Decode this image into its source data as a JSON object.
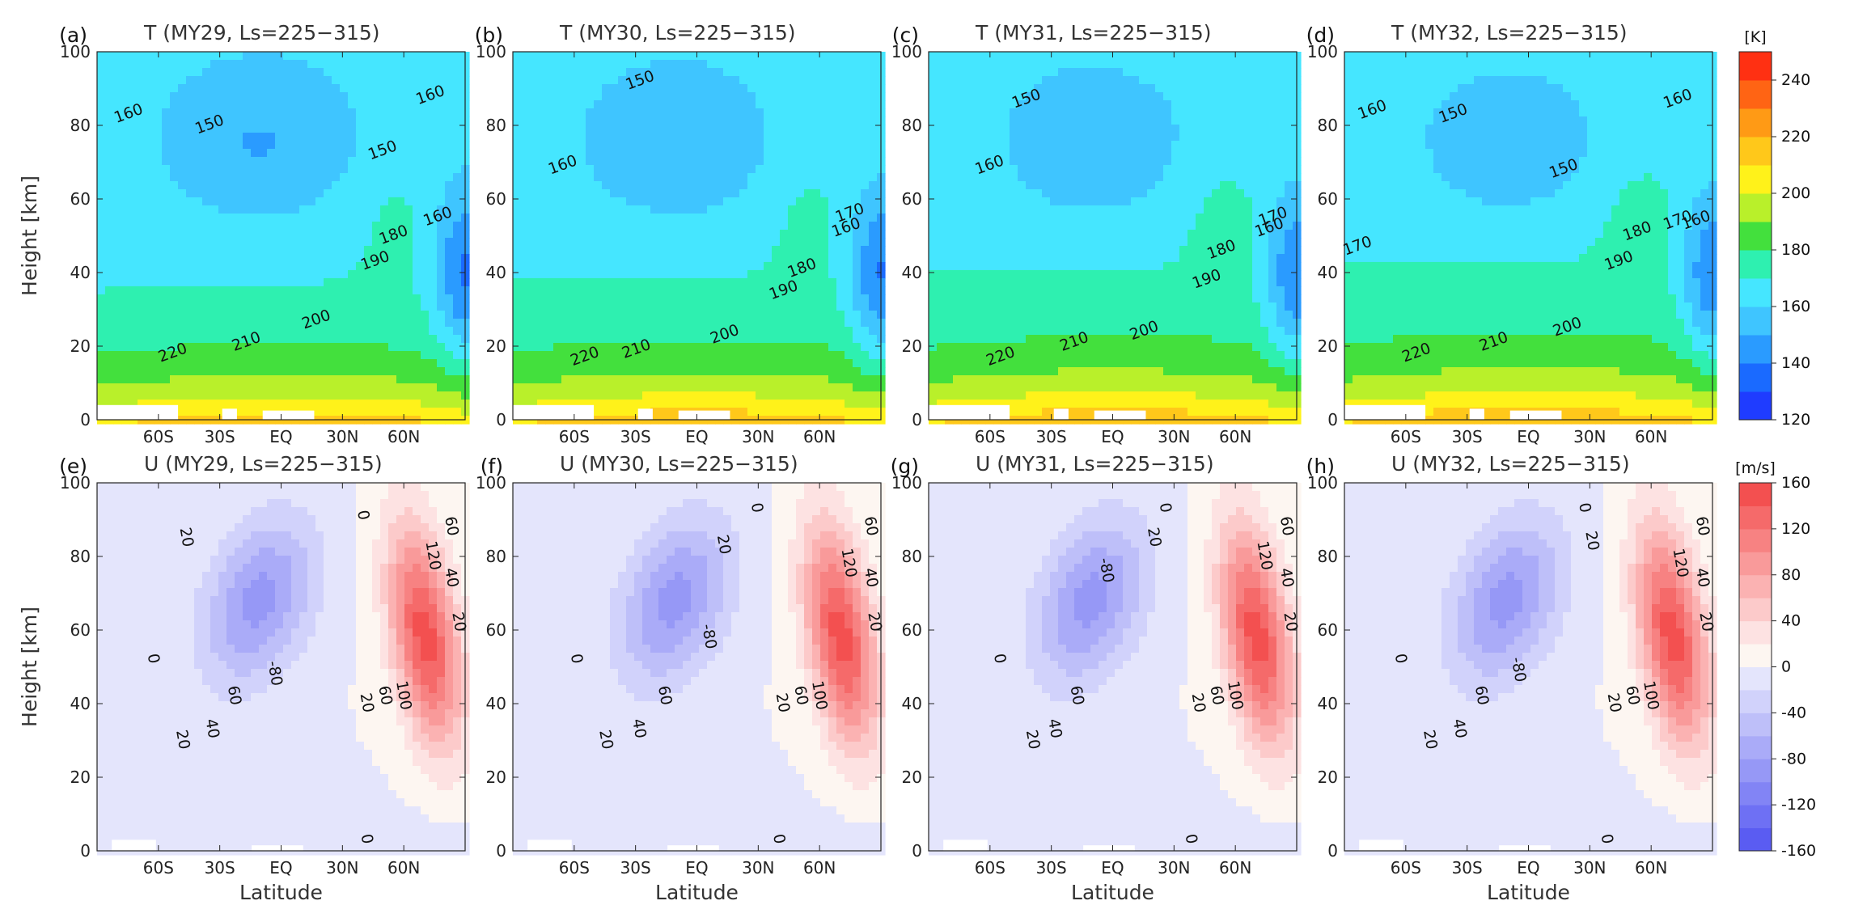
{
  "figure": {
    "t_units": "[K]",
    "u_units": "[m/s]",
    "x_axis_label": "Latitude",
    "y_axis_label": "Height [km]",
    "x_tick_labels": [
      "60S",
      "30S",
      "EQ",
      "30N",
      "60N"
    ],
    "y_tick_labels": [
      "0",
      "20",
      "40",
      "60",
      "80",
      "100"
    ],
    "t_colorbar_ticks": [
      "120",
      "140",
      "160",
      "180",
      "200",
      "220",
      "240"
    ],
    "u_colorbar_ticks": [
      "-160",
      "-120",
      "-80",
      "-40",
      "0",
      "40",
      "80",
      "120",
      "160"
    ],
    "t_colors": [
      "#1f3cff",
      "#1a6aff",
      "#2a9bff",
      "#3fc5ff",
      "#45e6ff",
      "#2ef0b0",
      "#43e03d",
      "#b9f02a",
      "#fff21a",
      "#ffc81a",
      "#ff9a15",
      "#ff6414",
      "#ff3012"
    ],
    "u_colors": [
      "#5a5cf2",
      "#6e70f4",
      "#8284f5",
      "#9698f6",
      "#aaabf8",
      "#bebff9",
      "#d1d2fb",
      "#e4e5fc",
      "#fdf6f1",
      "#fde2e2",
      "#fccaca",
      "#fbb2b2",
      "#f99a9a",
      "#f78282",
      "#f56a6a",
      "#f35050"
    ]
  },
  "chart_data": [
    {
      "panel": "(a)",
      "title": "T (MY29, Ls=225−315)",
      "type": "heatmap",
      "variable": "T",
      "xlim": [
        -90,
        90
      ],
      "ylim": [
        0,
        100
      ],
      "contour_labels": [
        "160",
        "150",
        "150",
        "160",
        "180",
        "190",
        "160",
        "200",
        "210",
        "220"
      ]
    },
    {
      "panel": "(b)",
      "title": "T (MY30, Ls=225−315)",
      "type": "heatmap",
      "variable": "T",
      "xlim": [
        -90,
        90
      ],
      "ylim": [
        0,
        100
      ],
      "contour_labels": [
        "150",
        "160",
        "180",
        "190",
        "170",
        "160",
        "200",
        "210",
        "220"
      ]
    },
    {
      "panel": "(c)",
      "title": "T (MY31, Ls=225−315)",
      "type": "heatmap",
      "variable": "T",
      "xlim": [
        -90,
        90
      ],
      "ylim": [
        0,
        100
      ],
      "contour_labels": [
        "150",
        "160",
        "180",
        "190",
        "170",
        "160",
        "200",
        "210",
        "220"
      ]
    },
    {
      "panel": "(d)",
      "title": "T (MY32, Ls=225−315)",
      "type": "heatmap",
      "variable": "T",
      "xlim": [
        -90,
        90
      ],
      "ylim": [
        0,
        100
      ],
      "contour_labels": [
        "160",
        "150",
        "150",
        "160",
        "170",
        "180",
        "190",
        "170",
        "160",
        "200",
        "210",
        "220"
      ]
    },
    {
      "panel": "(e)",
      "title": "U (MY29, Ls=225−315)",
      "type": "heatmap",
      "variable": "U",
      "xlim": [
        -90,
        90
      ],
      "ylim": [
        0,
        100
      ],
      "contour_labels": [
        "0",
        "20",
        "-80",
        "0",
        "20",
        "40",
        "60",
        "20",
        "60",
        "100",
        "120",
        "60",
        "40",
        "20",
        "0"
      ]
    },
    {
      "panel": "(f)",
      "title": "U (MY30, Ls=225−315)",
      "type": "heatmap",
      "variable": "U",
      "xlim": [
        -90,
        90
      ],
      "ylim": [
        0,
        100
      ],
      "contour_labels": [
        "0",
        "20",
        "-80",
        "0",
        "20",
        "40",
        "60",
        "20",
        "60",
        "100",
        "120",
        "60",
        "40",
        "20",
        "0"
      ]
    },
    {
      "panel": "(g)",
      "title": "U (MY31, Ls=225−315)",
      "type": "heatmap",
      "variable": "U",
      "xlim": [
        -90,
        90
      ],
      "ylim": [
        0,
        100
      ],
      "contour_labels": [
        "0",
        "20",
        "-80",
        "0",
        "20",
        "40",
        "60",
        "20",
        "60",
        "100",
        "120",
        "60",
        "40",
        "20",
        "0"
      ]
    },
    {
      "panel": "(h)",
      "title": "U (MY32, Ls=225−315)",
      "type": "heatmap",
      "variable": "U",
      "xlim": [
        -90,
        90
      ],
      "ylim": [
        0,
        100
      ],
      "contour_labels": [
        "0",
        "20",
        "-80",
        "0",
        "20",
        "40",
        "60",
        "20",
        "60",
        "100",
        "120",
        "60",
        "40",
        "20",
        "0"
      ]
    }
  ]
}
